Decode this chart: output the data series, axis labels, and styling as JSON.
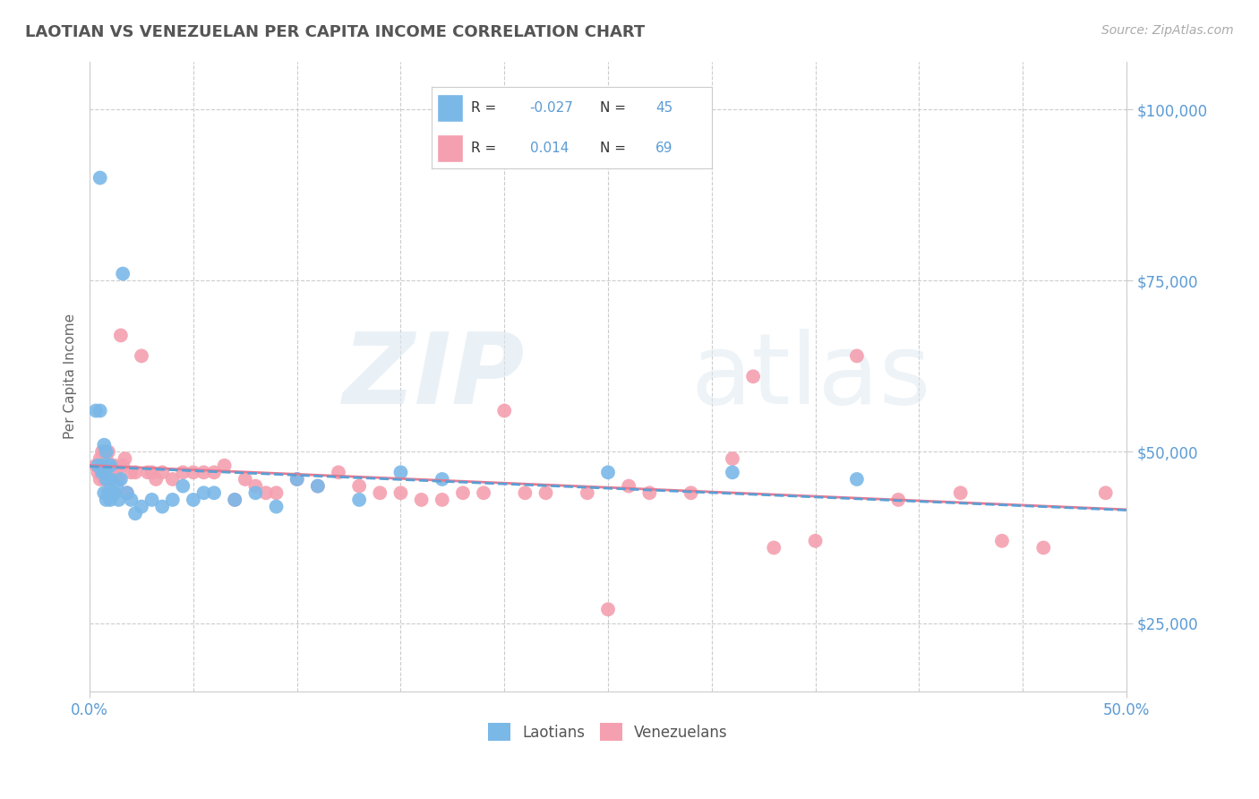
{
  "title": "LAOTIAN VS VENEZUELAN PER CAPITA INCOME CORRELATION CHART",
  "source_text": "Source: ZipAtlas.com",
  "ylabel": "Per Capita Income",
  "xlim": [
    0.0,
    0.5
  ],
  "ylim": [
    15000,
    107000
  ],
  "yticks": [
    25000,
    50000,
    75000,
    100000
  ],
  "ytick_labels": [
    "$25,000",
    "$50,000",
    "$75,000",
    "$100,000"
  ],
  "laotian_color": "#7ab8e8",
  "laotian_edge": "#5a9fd4",
  "venezuelan_color": "#f4a0b0",
  "venezuelan_edge": "#e07090",
  "laotian_line_color": "#5a9fd4",
  "venezuelan_line_color": "#e87a92",
  "laotian_R": -0.027,
  "laotian_N": 45,
  "venezuelan_R": 0.014,
  "venezuelan_N": 69,
  "background_color": "#ffffff",
  "grid_color": "#cccccc",
  "title_color": "#555555",
  "axis_color": "#5b9bd5",
  "label_color": "#888888",
  "laotian_x": [
    0.003,
    0.004,
    0.005,
    0.005,
    0.006,
    0.006,
    0.007,
    0.007,
    0.007,
    0.008,
    0.008,
    0.008,
    0.009,
    0.009,
    0.01,
    0.01,
    0.01,
    0.011,
    0.012,
    0.013,
    0.014,
    0.015,
    0.016,
    0.018,
    0.02,
    0.022,
    0.025,
    0.03,
    0.035,
    0.04,
    0.045,
    0.05,
    0.055,
    0.06,
    0.07,
    0.08,
    0.09,
    0.1,
    0.11,
    0.13,
    0.15,
    0.17,
    0.25,
    0.31,
    0.37
  ],
  "laotian_y": [
    56000,
    48000,
    90000,
    56000,
    48000,
    47000,
    51000,
    47000,
    44000,
    50000,
    46000,
    43000,
    48000,
    44000,
    48000,
    46000,
    43000,
    44000,
    44000,
    45000,
    43000,
    46000,
    76000,
    44000,
    43000,
    41000,
    42000,
    43000,
    42000,
    43000,
    45000,
    43000,
    44000,
    44000,
    43000,
    44000,
    42000,
    46000,
    45000,
    43000,
    47000,
    46000,
    47000,
    47000,
    46000
  ],
  "venezuelan_x": [
    0.003,
    0.004,
    0.005,
    0.005,
    0.006,
    0.006,
    0.007,
    0.007,
    0.007,
    0.008,
    0.008,
    0.009,
    0.009,
    0.01,
    0.01,
    0.011,
    0.012,
    0.013,
    0.014,
    0.015,
    0.016,
    0.017,
    0.018,
    0.02,
    0.022,
    0.025,
    0.028,
    0.03,
    0.032,
    0.035,
    0.04,
    0.045,
    0.05,
    0.055,
    0.06,
    0.065,
    0.07,
    0.075,
    0.08,
    0.085,
    0.09,
    0.1,
    0.11,
    0.12,
    0.13,
    0.14,
    0.15,
    0.16,
    0.17,
    0.18,
    0.19,
    0.2,
    0.21,
    0.22,
    0.24,
    0.25,
    0.26,
    0.27,
    0.29,
    0.31,
    0.32,
    0.33,
    0.35,
    0.37,
    0.39,
    0.42,
    0.44,
    0.46,
    0.49
  ],
  "venezuelan_y": [
    48000,
    47000,
    49000,
    46000,
    50000,
    47000,
    50000,
    48000,
    46000,
    49000,
    46000,
    50000,
    46000,
    48000,
    46000,
    47000,
    48000,
    47000,
    46000,
    67000,
    48000,
    49000,
    44000,
    47000,
    47000,
    64000,
    47000,
    47000,
    46000,
    47000,
    46000,
    47000,
    47000,
    47000,
    47000,
    48000,
    43000,
    46000,
    45000,
    44000,
    44000,
    46000,
    45000,
    47000,
    45000,
    44000,
    44000,
    43000,
    43000,
    44000,
    44000,
    56000,
    44000,
    44000,
    44000,
    27000,
    45000,
    44000,
    44000,
    49000,
    61000,
    36000,
    37000,
    64000,
    43000,
    44000,
    37000,
    36000,
    44000
  ]
}
